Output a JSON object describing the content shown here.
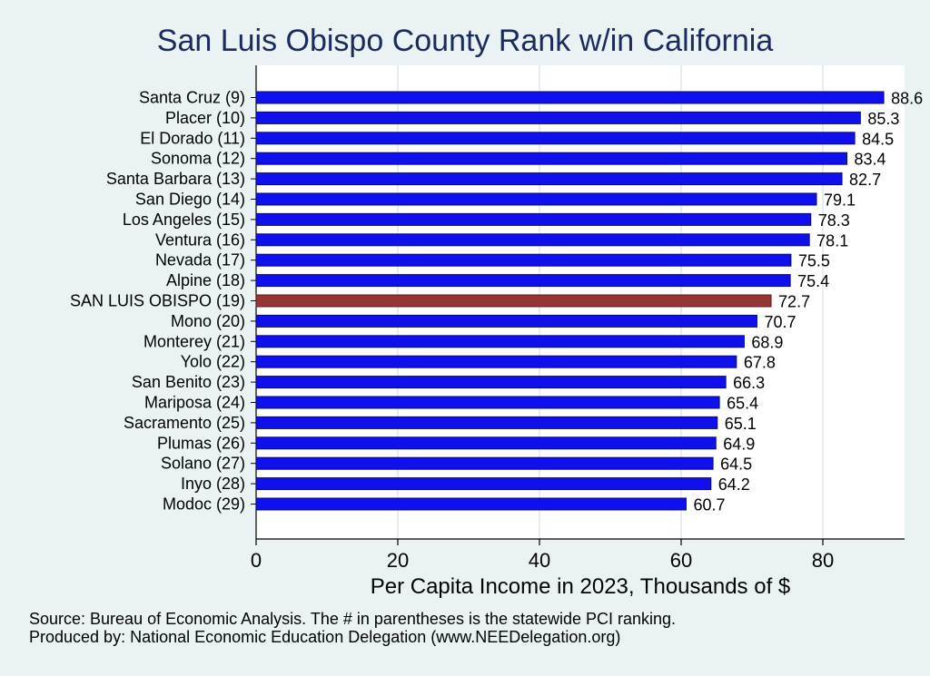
{
  "chart_data": {
    "type": "bar",
    "orientation": "horizontal",
    "title": "San Luis Obispo County Rank w/in California",
    "xlabel": "Per Capita Income in 2023, Thousands of $",
    "ylabel": "",
    "xlim": [
      0,
      91.5
    ],
    "xticks": [
      0,
      20,
      40,
      60,
      80
    ],
    "grid": "vertical",
    "categories": [
      "Santa Cruz  (9)",
      "Placer (10)",
      "El Dorado (11)",
      "Sonoma (12)",
      "Santa Barbara (13)",
      "San Diego (14)",
      "Los Angeles (15)",
      "Ventura (16)",
      "Nevada (17)",
      "Alpine (18)",
      "SAN LUIS OBISPO (19)",
      "Mono (20)",
      "Monterey (21)",
      "Yolo (22)",
      "San Benito (23)",
      "Mariposa (24)",
      "Sacramento (25)",
      "Plumas (26)",
      "Solano (27)",
      "Inyo (28)",
      "Modoc (29)"
    ],
    "values": [
      88.6,
      85.3,
      84.5,
      83.4,
      82.7,
      79.1,
      78.3,
      78.1,
      75.5,
      75.4,
      72.7,
      70.7,
      68.9,
      67.8,
      66.3,
      65.4,
      65.1,
      64.9,
      64.5,
      64.2,
      60.7
    ],
    "value_labels": [
      "88.6",
      "85.3",
      "84.5",
      "83.4",
      "82.7",
      "79.1",
      "78.3",
      "78.1",
      "75.5",
      "75.4",
      "72.7",
      "70.7",
      "68.9",
      "67.8",
      "66.3",
      "65.4",
      "65.1",
      "64.9",
      "64.5",
      "64.2",
      "60.7"
    ],
    "highlight_index": 10,
    "colors": {
      "bar": "#1010ee",
      "bar_stroke": "#0a0a6e",
      "highlight": "#953535",
      "highlight_stroke": "#5a1e1e",
      "grid": "#e6eff0",
      "title": "#1a2b5c"
    }
  },
  "notes": {
    "source": "Source: Bureau of Economic Analysis. The # in parentheses is the statewide PCI ranking.",
    "producer": "Produced by: National Economic Education Delegation (www.NEEDelegation.org)"
  }
}
